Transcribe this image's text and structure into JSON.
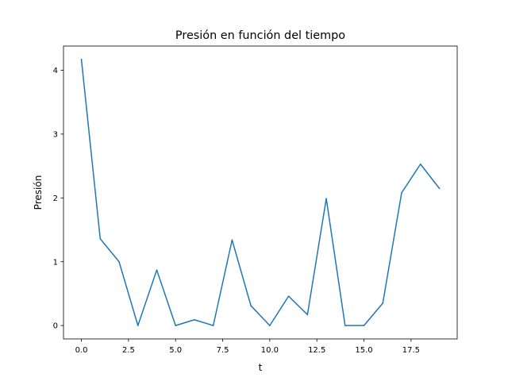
{
  "chart_data": {
    "type": "line",
    "title": "Presión en función del tiempo",
    "xlabel": "t",
    "ylabel": "Presión",
    "xlim": [
      -0.95,
      19.95
    ],
    "ylim": [
      -0.21,
      4.38
    ],
    "xticks": [
      0.0,
      2.5,
      5.0,
      7.5,
      10.0,
      12.5,
      15.0,
      17.5
    ],
    "xtick_labels": [
      "0.0",
      "2.5",
      "5.0",
      "7.5",
      "10.0",
      "12.5",
      "15.0",
      "17.5"
    ],
    "yticks": [
      0,
      1,
      2,
      3,
      4
    ],
    "ytick_labels": [
      "0",
      "1",
      "2",
      "3",
      "4"
    ],
    "grid": false,
    "series": [
      {
        "color": "#1f77b4",
        "x": [
          0,
          1,
          2,
          3,
          4,
          5,
          6,
          7,
          8,
          9,
          10,
          11,
          12,
          13,
          14,
          15,
          16,
          17,
          18,
          19
        ],
        "values": [
          4.17,
          1.36,
          1.0,
          0.0,
          0.87,
          0.0,
          0.09,
          0.0,
          1.34,
          0.31,
          0.0,
          0.46,
          0.17,
          1.99,
          0.0,
          0.0,
          0.35,
          2.08,
          2.53,
          2.15
        ]
      }
    ]
  }
}
